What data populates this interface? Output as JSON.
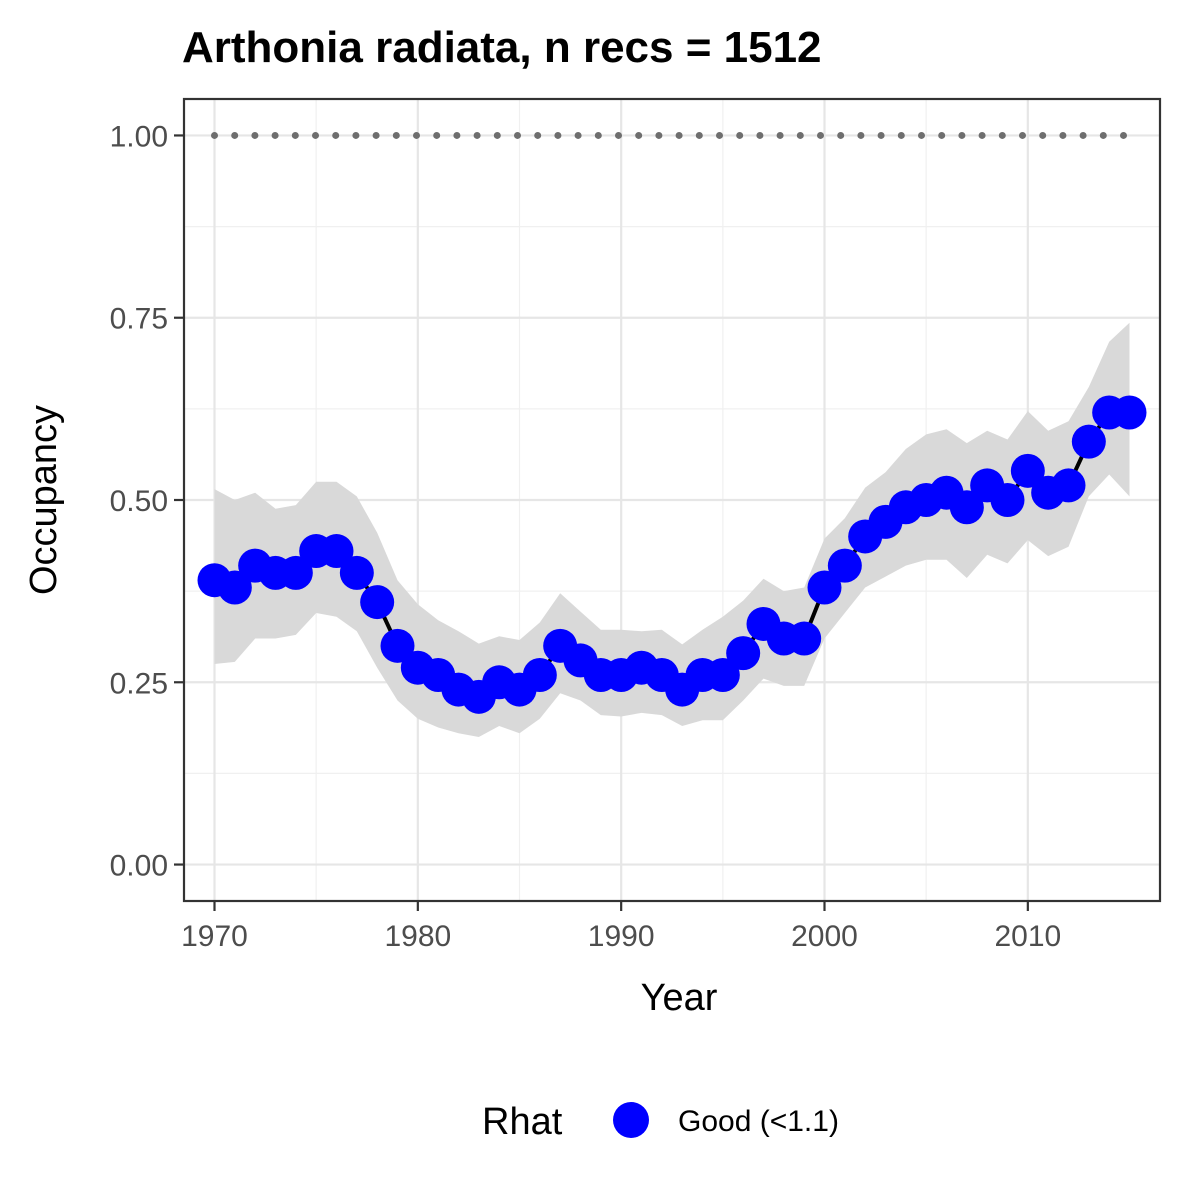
{
  "chart_data": {
    "type": "line",
    "title": "Arthonia radiata, n recs = 1512",
    "xlabel": "Year",
    "ylabel": "Occupancy",
    "xlim": [
      1968.5,
      2016.5
    ],
    "ylim": [
      -0.05,
      1.05
    ],
    "x_ticks": [
      1970,
      1980,
      1990,
      2000,
      2010
    ],
    "x_tick_labels": [
      "1970",
      "1980",
      "1990",
      "2000",
      "2010"
    ],
    "y_ticks": [
      0.0,
      0.25,
      0.5,
      0.75,
      1.0
    ],
    "y_tick_labels": [
      "0.00",
      "0.25",
      "0.50",
      "0.75",
      "1.00"
    ],
    "grid": true,
    "legend": {
      "title": "Rhat",
      "position": "bottom",
      "entries": [
        {
          "label": "Good (<1.1)",
          "color": "#0000ff"
        }
      ]
    },
    "x": [
      1970,
      1971,
      1972,
      1973,
      1974,
      1975,
      1976,
      1977,
      1978,
      1979,
      1980,
      1981,
      1982,
      1983,
      1984,
      1985,
      1986,
      1987,
      1988,
      1989,
      1990,
      1991,
      1992,
      1993,
      1994,
      1995,
      1996,
      1997,
      1998,
      1999,
      2000,
      2001,
      2002,
      2003,
      2004,
      2005,
      2006,
      2007,
      2008,
      2009,
      2010,
      2011,
      2012,
      2013,
      2014,
      2015
    ],
    "series": [
      {
        "marker_color": "#0000ff",
        "line_color": "#000000",
        "values": [
          0.39,
          0.38,
          0.41,
          0.4,
          0.4,
          0.43,
          0.43,
          0.4,
          0.36,
          0.3,
          0.27,
          0.26,
          0.24,
          0.23,
          0.25,
          0.24,
          0.26,
          0.3,
          0.28,
          0.26,
          0.26,
          0.27,
          0.26,
          0.24,
          0.26,
          0.26,
          0.29,
          0.33,
          0.31,
          0.31,
          0.38,
          0.41,
          0.45,
          0.47,
          0.49,
          0.5,
          0.51,
          0.49,
          0.52,
          0.5,
          0.54,
          0.51,
          0.52,
          0.58,
          0.62,
          0.62
        ]
      }
    ],
    "ribbon": {
      "color": "#d9d9d9",
      "lower": [
        0.275,
        0.278,
        0.31,
        0.31,
        0.315,
        0.345,
        0.34,
        0.32,
        0.27,
        0.225,
        0.2,
        0.188,
        0.18,
        0.175,
        0.19,
        0.18,
        0.2,
        0.235,
        0.225,
        0.205,
        0.203,
        0.208,
        0.205,
        0.19,
        0.198,
        0.198,
        0.225,
        0.255,
        0.245,
        0.245,
        0.31,
        0.345,
        0.38,
        0.395,
        0.41,
        0.418,
        0.418,
        0.393,
        0.425,
        0.413,
        0.445,
        0.423,
        0.436,
        0.505,
        0.535,
        0.505
      ],
      "upper": [
        0.515,
        0.5,
        0.51,
        0.488,
        0.493,
        0.525,
        0.525,
        0.505,
        0.455,
        0.39,
        0.357,
        0.335,
        0.32,
        0.303,
        0.313,
        0.308,
        0.332,
        0.372,
        0.347,
        0.322,
        0.322,
        0.32,
        0.322,
        0.302,
        0.322,
        0.34,
        0.362,
        0.392,
        0.375,
        0.38,
        0.447,
        0.475,
        0.517,
        0.538,
        0.57,
        0.59,
        0.597,
        0.578,
        0.595,
        0.583,
        0.622,
        0.595,
        0.608,
        0.655,
        0.717,
        0.743
      ]
    },
    "reference_line": {
      "y": 1.0,
      "style": "dotted",
      "color": "#6e6e6e"
    }
  }
}
